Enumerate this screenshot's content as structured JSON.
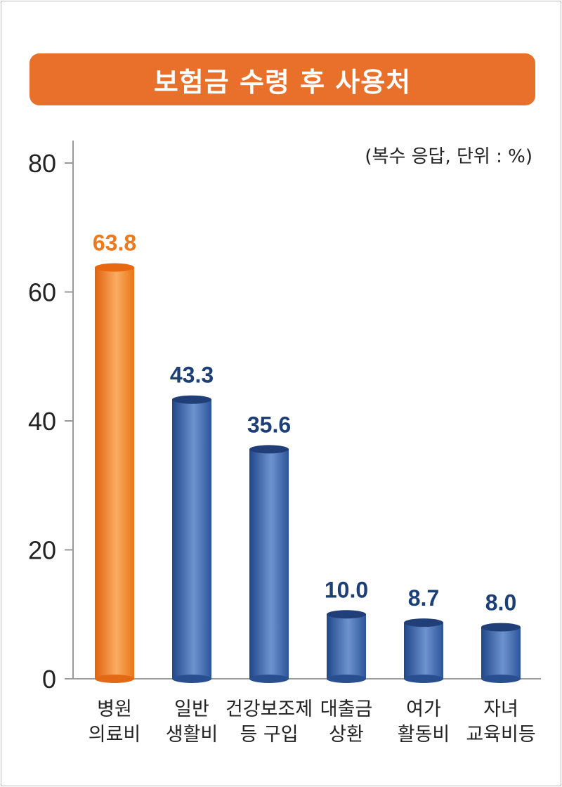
{
  "title": "보험금 수령 후 사용처",
  "unit_note": "(복수 응답, 단위 : %)",
  "colors": {
    "title_bg": "#e9702a",
    "highlight_bar": "#f07d1c",
    "highlight_label": "#ee7a1d",
    "bar": "#3563a8",
    "bar_label": "#1d3f78",
    "axis": "#9a9a9a"
  },
  "chart_data": {
    "type": "bar",
    "title": "보험금 수령 후 사용처",
    "categories": [
      [
        "병원",
        "의료비"
      ],
      [
        "일반",
        "생활비"
      ],
      [
        "건강보조제",
        "등 구입"
      ],
      [
        "대출금",
        "상환"
      ],
      [
        "여가",
        "활동비"
      ],
      [
        "자녀",
        "교육비등"
      ]
    ],
    "values": [
      63.8,
      43.3,
      35.6,
      10.0,
      8.7,
      8.0
    ],
    "value_labels": [
      "63.8",
      "43.3",
      "35.6",
      "10.0",
      "8.7",
      "8.0"
    ],
    "highlight_index": 0,
    "ylim": [
      0,
      80
    ],
    "yticks": [
      0,
      20,
      40,
      60,
      80
    ],
    "ytick_labels": [
      "0",
      "20",
      "40",
      "60",
      "80"
    ],
    "grid": false
  }
}
